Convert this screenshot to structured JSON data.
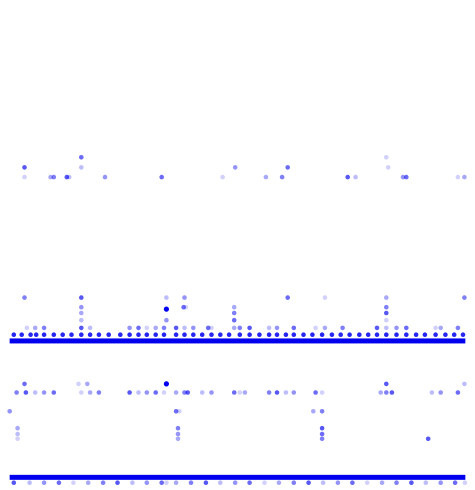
{
  "chart_data": {
    "type": "scatter",
    "title": "",
    "xlabel": "",
    "ylabel": "",
    "xlim": [
      0,
      100
    ],
    "ylim": [
      0,
      100
    ],
    "grid": false,
    "legend": "none",
    "axes_visible": false,
    "marker_color": "#0000ee",
    "band_color": "#0000ee",
    "bands": [
      {
        "y": 30.2,
        "x_start": 1,
        "x_end": 99
      },
      {
        "y": 1.9,
        "x_start": 1,
        "x_end": 99
      }
    ],
    "rows": [
      {
        "y": 64.3,
        "x": [
          4.2,
          9.8,
          10.5,
          13.3,
          13.8,
          21.5,
          33.7,
          46.8,
          56.1,
          59.6,
          73.7,
          75.4,
          85.6,
          86.3,
          97.4,
          98.8
        ]
      },
      {
        "y": 66.3,
        "x": [
          4.2,
          16.4,
          49.5,
          60.8,
          82.4
        ]
      },
      {
        "y": 68.4,
        "x": [
          16.4,
          82.0
        ]
      },
      {
        "y": 39.3,
        "x": [
          4.2,
          16.4,
          34.7,
          38.6,
          60.8,
          68.8,
          82.0,
          98.8
        ]
      },
      {
        "y": 37.3,
        "x": [
          16.4,
          38.4,
          38.9,
          49.3,
          82.0
        ]
      },
      {
        "y": 36.1,
        "x": [
          16.4,
          49.3,
          82.0
        ]
      },
      {
        "y": 34.6,
        "x": [
          16.4,
          34.7,
          49.3,
          82.0
        ]
      },
      {
        "y": 33.0,
        "x": [
          4.7,
          6.5,
          8.4,
          16.4,
          18.3,
          26.8,
          28.7,
          30.5,
          32.4,
          34.2,
          36.8,
          38.6,
          40.5,
          43.7,
          44.4,
          49.3,
          50.5,
          52.6,
          56.8,
          58.5,
          62.1,
          66.8,
          68.8,
          72.6,
          80.0,
          82.0,
          84.2,
          86.3,
          92.6,
          93.7,
          97.4
        ]
      },
      {
        "y": 31.6,
        "x": [
          1.9,
          3.6,
          5.5,
          6.7,
          8.4,
          10.5,
          12.4,
          14.3,
          16.4,
          18.3,
          20.2,
          22.3,
          24.8,
          26.8,
          28.7,
          30.5,
          32.4,
          34.2,
          36.8,
          38.6,
          40.5,
          42.4,
          44.4,
          46.3,
          48.2,
          50.5,
          52.6,
          54.7,
          56.8,
          58.5,
          60.4,
          62.1,
          64.2,
          66.1,
          68.2,
          70.3,
          72.2,
          74.1,
          76.2,
          78.1,
          80.0,
          82.0,
          84.2,
          86.3,
          88.4,
          90.3,
          92.6,
          94.7,
          96.6,
          98.5
        ]
      },
      {
        "y": 21.4,
        "x": [
          4.2,
          15.8,
          17.7,
          34.7,
          82.0,
          98.8
        ]
      },
      {
        "y": 19.6,
        "x": [
          2.5,
          4.5,
          6.5,
          8.4,
          10.5,
          16.4,
          18.3,
          20.2,
          26.8,
          28.7,
          30.5,
          32.4,
          34.2,
          36.8,
          38.6,
          39.3,
          42.4,
          44.4,
          49.3,
          50.5,
          51.6,
          56.8,
          58.5,
          60.4,
          62.1,
          66.8,
          68.2,
          80.8,
          82.0,
          83.2,
          91.8,
          93.7,
          97.4
        ]
      },
      {
        "y": 15.7,
        "x": [
          1.0,
          36.8,
          37.5,
          66.3,
          68.2
        ]
      },
      {
        "y": 12.2,
        "x": [
          2.7,
          37.2,
          68.2
        ]
      },
      {
        "y": 11.0,
        "x": [
          2.7,
          37.2,
          68.2
        ]
      },
      {
        "y": 10.0,
        "x": [
          2.7,
          37.2,
          68.2,
          91.0
        ]
      },
      {
        "y": 0.9,
        "x": [
          1.9,
          5.3,
          8.4,
          11.6,
          14.7,
          17.9,
          21.1,
          24.2,
          27.4,
          30.5,
          33.7,
          34.7,
          36.8,
          40.0,
          43.2,
          46.3,
          49.5,
          52.6,
          55.8,
          58.9,
          62.1,
          65.3,
          68.4,
          71.6,
          74.7,
          77.9,
          81.1,
          84.2,
          87.4,
          90.5,
          93.7,
          96.8,
          98.9
        ]
      }
    ],
    "strong_points": [
      {
        "x": 34.7,
        "y": 36.9
      },
      {
        "x": 34.7,
        "y": 21.4
      }
    ]
  }
}
